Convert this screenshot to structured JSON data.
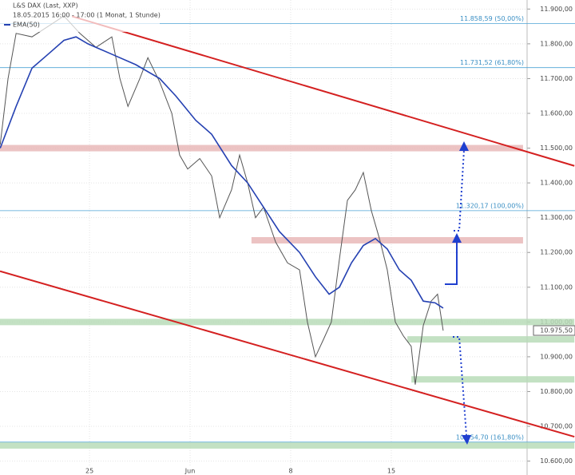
{
  "chart_data": {
    "type": "line",
    "title": "L&S DAX (Last, XXP)",
    "subtitle": "18.05.2015 16:00 - 17:00 (1 Monat, 1 Stunde)",
    "xlim": [
      0.55,
      26.75
    ],
    "ylim": [
      10560,
      11926
    ],
    "grid": true,
    "xticks": [
      {
        "value": 5,
        "label": "25"
      },
      {
        "value": 10,
        "label": "Jun"
      },
      {
        "value": 15,
        "label": "8"
      },
      {
        "value": 20,
        "label": "15"
      }
    ],
    "yticks": [
      {
        "value": 11900,
        "label": "11.900,00"
      },
      {
        "value": 11800,
        "label": "11.800,00"
      },
      {
        "value": 11700,
        "label": "11.700,00"
      },
      {
        "value": 11600,
        "label": "11.600,00"
      },
      {
        "value": 11500,
        "label": "11.500,00"
      },
      {
        "value": 11400,
        "label": "11.400,00"
      },
      {
        "value": 11300,
        "label": "11.300,00"
      },
      {
        "value": 11200,
        "label": "11.200,00"
      },
      {
        "value": 11100,
        "label": "11.100,00"
      },
      {
        "value": 11000,
        "label": "11.000,00"
      },
      {
        "value": 10900,
        "label": "10.900,00"
      },
      {
        "value": 10800,
        "label": "10.800,00"
      },
      {
        "value": 10700,
        "label": "10.700,00"
      },
      {
        "value": 10600,
        "label": "10.600,00"
      }
    ],
    "series": [
      {
        "name": "L&S DAX",
        "color": "#555555",
        "x": [
          0.56,
          0.95,
          1.35,
          2.14,
          2.94,
          3.73,
          4.52,
          5.32,
          6.11,
          6.51,
          6.91,
          7.5,
          7.9,
          8.49,
          9.09,
          9.48,
          9.88,
          10.48,
          11.07,
          11.47,
          12.06,
          12.46,
          12.86,
          13.25,
          13.65,
          14.25,
          14.84,
          15.44,
          15.83,
          16.23,
          16.63,
          17.02,
          17.42,
          17.82,
          18.21,
          18.61,
          19.01,
          19.41,
          19.8,
          20.2,
          20.6,
          20.99,
          21.19,
          21.59,
          21.98,
          22.3,
          22.58
        ],
        "values": [
          11510,
          11700,
          11830,
          11820,
          11850,
          11880,
          11830,
          11790,
          11820,
          11700,
          11620,
          11700,
          11760,
          11690,
          11600,
          11480,
          11440,
          11470,
          11420,
          11300,
          11380,
          11480,
          11400,
          11300,
          11330,
          11230,
          11170,
          11150,
          11000,
          10900,
          10950,
          11000,
          11180,
          11350,
          11380,
          11430,
          11320,
          11240,
          11150,
          11000,
          10960,
          10930,
          10820,
          10990,
          11060,
          11080,
          10975
        ]
      },
      {
        "name": "EMA(50)",
        "color": "#2541b2",
        "x": [
          0.56,
          1.35,
          2.14,
          2.94,
          3.73,
          4.33,
          4.92,
          6.11,
          7.3,
          8.49,
          9.29,
          10.28,
          11.07,
          12.06,
          12.86,
          13.65,
          14.44,
          15.44,
          16.23,
          16.91,
          17.42,
          18.02,
          18.61,
          19.21,
          19.8,
          20.4,
          20.99,
          21.59,
          22.18,
          22.58
        ],
        "values": [
          11500,
          11620,
          11730,
          11770,
          11810,
          11820,
          11800,
          11770,
          11740,
          11700,
          11650,
          11580,
          11540,
          11450,
          11400,
          11330,
          11260,
          11200,
          11130,
          11080,
          11100,
          11170,
          11220,
          11240,
          11210,
          11150,
          11120,
          11060,
          11055,
          11040
        ]
      }
    ],
    "levels": [
      {
        "value": 11858.59,
        "label": "11.858,59 (50,00%)"
      },
      {
        "value": 11731.52,
        "label": "11.731,52 (61,80%)"
      },
      {
        "value": 11320.17,
        "label": "11.320,17 (100,00%)"
      },
      {
        "value": 10654.7,
        "label": "10.654,70 (161,80%)"
      }
    ],
    "zones": [
      {
        "value": 11500,
        "from": 0.55,
        "to": 26.55,
        "color": "#e9b8b8"
      },
      {
        "value": 11235,
        "from": 13.05,
        "to": 26.55,
        "color": "#e9b8b8"
      },
      {
        "value": 11000,
        "from": 0.55,
        "to": 29.1,
        "color": "#b9dcb9"
      },
      {
        "value": 10950,
        "from": 20.8,
        "to": 29.1,
        "color": "#b9dcb9"
      },
      {
        "value": 10835,
        "from": 21.0,
        "to": 29.1,
        "color": "#b9dcb9"
      },
      {
        "value": 10645,
        "from": 0.55,
        "to": 29.1,
        "color": "#b9dcb9"
      }
    ],
    "trendlines": [
      {
        "x": [
          0.55,
          29.1
        ],
        "values": [
          11146,
          10670
        ],
        "color": "#d42020"
      },
      {
        "x": [
          4.13,
          29.1
        ],
        "values": [
          11879,
          11449
        ],
        "color": "#d42020"
      }
    ],
    "last_price": {
      "value": 10975.5,
      "label": "10.975,50"
    }
  }
}
